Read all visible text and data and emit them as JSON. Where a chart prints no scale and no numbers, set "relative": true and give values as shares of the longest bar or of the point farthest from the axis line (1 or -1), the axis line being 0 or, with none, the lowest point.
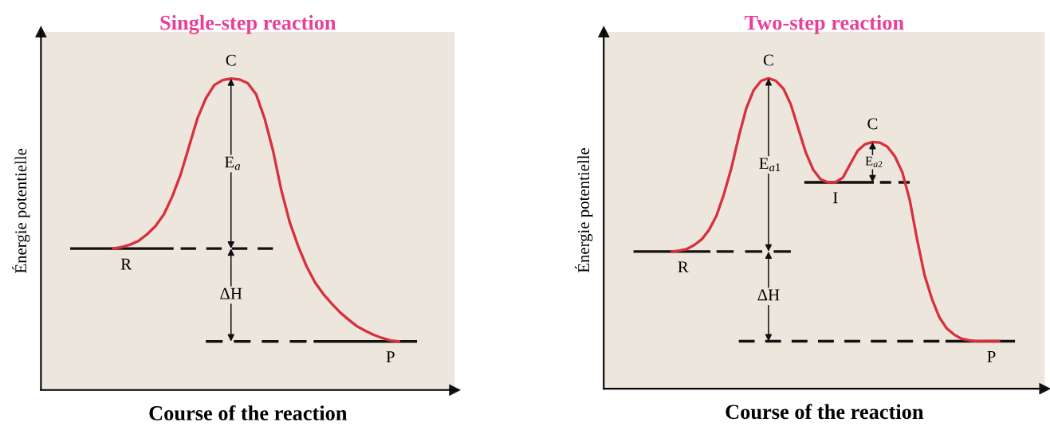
{
  "chart_data": [
    {
      "type": "line",
      "relative": true,
      "tick_labels": false,
      "title": "Single-step reaction",
      "xlabel": "Course of the reaction",
      "ylabel": "Énergie potentielle",
      "categories": [
        null,
        null,
        null,
        null,
        null,
        null,
        null,
        null,
        null,
        null,
        null,
        null,
        null,
        null,
        null,
        null,
        null,
        null,
        null,
        null,
        null,
        null,
        null,
        null,
        null,
        null,
        null,
        null,
        null,
        null,
        null,
        null,
        null,
        null,
        null,
        null,
        null,
        null,
        null,
        null,
        null,
        null,
        null,
        null
      ],
      "series": [
        {
          "color": "#d9303f",
          "line_style": "solid",
          "values": [
            null,
            null,
            null,
            null,
            null,
            null,
            0.454,
            0.459,
            0.467,
            0.479,
            0.5,
            0.526,
            0.564,
            0.621,
            0.692,
            0.782,
            0.872,
            0.936,
            0.979,
            0.995,
            1,
            0.997,
            0.985,
            0.949,
            0.872,
            0.769,
            0.641,
            0.538,
            0.462,
            0.397,
            0.346,
            0.308,
            0.277,
            0.249,
            0.226,
            0.205,
            0.19,
            0.177,
            0.167,
            0.159,
            0.156,
            null,
            null,
            null
          ]
        },
        {
          "color": "#111111",
          "line_style": "solid",
          "values": [
            null,
            0.454,
            0.454,
            0.454,
            0.454,
            0.454,
            0.454,
            0.454,
            0.454,
            0.454,
            0.454,
            0.454,
            0.454,
            0.454,
            null,
            null,
            null,
            null,
            null,
            null,
            null,
            null,
            null,
            null,
            null,
            null,
            null,
            null,
            null,
            null,
            null,
            null,
            null,
            null,
            null,
            null,
            null,
            null,
            null,
            null,
            null,
            null,
            null,
            null
          ]
        },
        {
          "color": "#111111",
          "line_style": "dashed",
          "values": [
            null,
            null,
            null,
            null,
            null,
            null,
            null,
            null,
            null,
            null,
            null,
            null,
            null,
            null,
            0.454,
            0.454,
            0.454,
            0.454,
            0.454,
            0.454,
            0.454,
            0.454,
            0.454,
            0.454,
            0.454,
            0.454,
            null,
            null,
            null,
            null,
            null,
            null,
            null,
            null,
            null,
            null,
            null,
            null,
            null,
            null,
            null,
            null,
            null,
            null
          ]
        },
        {
          "color": "#111111",
          "line_style": "dashed",
          "values": [
            null,
            null,
            null,
            null,
            null,
            null,
            null,
            null,
            null,
            null,
            null,
            null,
            null,
            null,
            null,
            null,
            null,
            0.156,
            0.156,
            0.156,
            0.156,
            0.156,
            0.156,
            0.156,
            0.156,
            0.156,
            0.156,
            0.156,
            0.156,
            0.156,
            null,
            null,
            null,
            null,
            null,
            null,
            null,
            null,
            null,
            null,
            null,
            null,
            null,
            null
          ]
        },
        {
          "color": "#111111",
          "line_style": "solid",
          "values": [
            null,
            null,
            null,
            null,
            null,
            null,
            null,
            null,
            null,
            null,
            null,
            null,
            null,
            null,
            null,
            null,
            null,
            null,
            null,
            null,
            null,
            null,
            null,
            null,
            null,
            null,
            null,
            null,
            null,
            null,
            0.156,
            0.156,
            0.156,
            0.156,
            0.156,
            0.156,
            0.156,
            0.156,
            0.156,
            0.156,
            0.156,
            0.156,
            0.156,
            null
          ]
        }
      ],
      "annotations": [
        "C",
        "E$_{a}$",
        "R",
        "ΔH",
        "P"
      ]
    },
    {
      "type": "line",
      "relative": true,
      "tick_labels": false,
      "title": "Two-step reaction",
      "xlabel": "Course of the reaction",
      "ylabel": "Énergie potentielle",
      "categories": [
        null,
        null,
        null,
        null,
        null,
        null,
        null,
        null,
        null,
        null,
        null,
        null,
        null,
        null,
        null,
        null,
        null,
        null,
        null,
        null,
        null,
        null,
        null,
        null,
        null,
        null,
        null,
        null,
        null,
        null,
        null,
        null,
        null,
        null,
        null,
        null,
        null,
        null,
        null,
        null,
        null,
        null,
        null,
        null,
        null,
        null,
        null,
        null,
        null,
        null,
        null,
        null,
        null
      ],
      "series": [
        {
          "color": "#d9303f",
          "line_style": "solid",
          "values": [
            null,
            null,
            null,
            null,
            null,
            null,
            0.442,
            0.445,
            0.45,
            0.463,
            0.481,
            0.512,
            0.558,
            0.627,
            0.711,
            0.813,
            0.903,
            0.962,
            0.992,
            1,
            0.992,
            0.967,
            0.916,
            0.839,
            0.762,
            0.706,
            0.675,
            0.665,
            0.665,
            0.68,
            0.724,
            0.767,
            0.788,
            0.795,
            0.793,
            0.78,
            0.749,
            0.698,
            0.609,
            0.481,
            0.366,
            0.289,
            0.23,
            0.194,
            0.174,
            0.161,
            0.156,
            0.153,
            0.153,
            0.153,
            0.153,
            null,
            null
          ]
        },
        {
          "color": "#111111",
          "line_style": "solid",
          "values": [
            null,
            0.442,
            0.442,
            0.442,
            0.442,
            0.442,
            0.442,
            0.442,
            0.442,
            0.442,
            0.442,
            0.442,
            null,
            null,
            null,
            null,
            null,
            null,
            null,
            null,
            null,
            null,
            null,
            null,
            null,
            null,
            null,
            null,
            null,
            null,
            null,
            null,
            null,
            null,
            null,
            null,
            null,
            null,
            null,
            null,
            null,
            null,
            null,
            null,
            null,
            null,
            null,
            null,
            null,
            null,
            null,
            null,
            null
          ]
        },
        {
          "color": "#111111",
          "line_style": "dashed",
          "values": [
            null,
            null,
            null,
            null,
            null,
            null,
            null,
            null,
            null,
            null,
            null,
            null,
            0.442,
            0.442,
            0.442,
            0.442,
            0.442,
            0.442,
            0.442,
            0.442,
            0.442,
            0.442,
            0.442,
            null,
            null,
            null,
            null,
            null,
            null,
            null,
            null,
            null,
            null,
            null,
            null,
            null,
            null,
            null,
            null,
            null,
            null,
            null,
            null,
            null,
            null,
            null,
            null,
            null,
            null,
            null,
            null,
            null,
            null
          ]
        },
        {
          "color": "#111111",
          "line_style": "solid",
          "values": [
            null,
            null,
            null,
            null,
            null,
            null,
            null,
            null,
            null,
            null,
            null,
            null,
            null,
            null,
            null,
            null,
            null,
            null,
            null,
            null,
            null,
            null,
            null,
            null,
            0.665,
            0.665,
            0.665,
            0.665,
            0.665,
            0.665,
            0.665,
            0.665,
            0.665,
            0.665,
            null,
            null,
            null,
            null,
            null,
            null,
            null,
            null,
            null,
            null,
            null,
            null,
            null,
            null,
            null,
            null,
            null,
            null,
            null
          ]
        },
        {
          "color": "#111111",
          "line_style": "dashed",
          "values": [
            null,
            null,
            null,
            null,
            null,
            null,
            null,
            null,
            null,
            null,
            null,
            null,
            null,
            null,
            null,
            null,
            null,
            null,
            null,
            null,
            null,
            null,
            null,
            null,
            null,
            null,
            null,
            null,
            null,
            null,
            null,
            null,
            null,
            null,
            0.665,
            0.665,
            0.665,
            0.665,
            0.665,
            null,
            null,
            null,
            null,
            null,
            null,
            null,
            null,
            null,
            null,
            null,
            null,
            null,
            null
          ]
        },
        {
          "color": "#111111",
          "line_style": "dashed",
          "values": [
            null,
            null,
            null,
            null,
            null,
            null,
            null,
            null,
            null,
            null,
            null,
            null,
            null,
            null,
            null,
            0.153,
            0.153,
            0.153,
            0.153,
            0.153,
            0.153,
            0.153,
            0.153,
            0.153,
            0.153,
            0.153,
            0.153,
            0.153,
            0.153,
            0.153,
            0.153,
            0.153,
            0.153,
            0.153,
            0.153,
            0.153,
            0.153,
            0.153,
            0.153,
            0.153,
            0.153,
            0.153,
            0.153,
            null,
            null,
            null,
            null,
            null,
            null,
            null,
            null,
            null,
            null
          ]
        },
        {
          "color": "#111111",
          "line_style": "solid",
          "values": [
            null,
            null,
            null,
            null,
            null,
            null,
            null,
            null,
            null,
            null,
            null,
            null,
            null,
            null,
            null,
            null,
            null,
            null,
            null,
            null,
            null,
            null,
            null,
            null,
            null,
            null,
            null,
            null,
            null,
            null,
            null,
            null,
            null,
            null,
            null,
            null,
            null,
            null,
            null,
            null,
            null,
            null,
            null,
            0.153,
            0.153,
            0.153,
            0.153,
            0.153,
            0.153,
            0.153,
            0.153,
            0.153,
            0.153
          ]
        }
      ],
      "annotations": [
        "C",
        "E$_{a1}$",
        "C",
        "E$_{a2}$",
        "I",
        "R",
        "ΔH",
        "P"
      ]
    }
  ]
}
